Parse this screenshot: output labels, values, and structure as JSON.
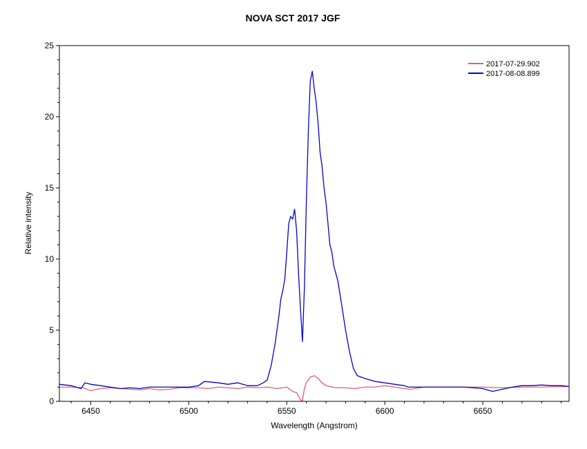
{
  "chart_data": {
    "type": "line",
    "title": "NOVA SCT 2017   JGF",
    "xlabel": "Wavelength (Angstrom)",
    "ylabel": "Relative intensity",
    "xlim": [
      6434,
      6694
    ],
    "ylim": [
      0,
      25
    ],
    "xticks": [
      6450,
      6500,
      6550,
      6600,
      6650
    ],
    "yticks": [
      0,
      5,
      10,
      15,
      20,
      25
    ],
    "grid": false,
    "legend_position": "top-right",
    "series": [
      {
        "name": "2017-07-29.902",
        "color": "#e85a6a",
        "x": [
          6434,
          6440,
          6446,
          6450,
          6455,
          6460,
          6465,
          6470,
          6475,
          6480,
          6485,
          6490,
          6495,
          6500,
          6505,
          6510,
          6515,
          6520,
          6525,
          6530,
          6535,
          6540,
          6545,
          6550,
          6553,
          6555,
          6557,
          6558,
          6559,
          6560,
          6562,
          6564,
          6566,
          6568,
          6570,
          6575,
          6580,
          6585,
          6590,
          6595,
          6600,
          6605,
          6610,
          6613,
          6620,
          6630,
          6640,
          6650,
          6660,
          6670,
          6680,
          6694
        ],
        "y": [
          1.0,
          1.0,
          0.95,
          0.75,
          0.9,
          0.95,
          0.9,
          0.85,
          0.8,
          0.9,
          0.8,
          0.85,
          0.95,
          0.95,
          0.95,
          0.9,
          1.0,
          0.95,
          0.9,
          1.0,
          0.95,
          1.0,
          0.9,
          1.0,
          0.7,
          0.6,
          0.1,
          0.05,
          0.9,
          1.3,
          1.7,
          1.8,
          1.6,
          1.3,
          1.1,
          0.95,
          0.95,
          0.9,
          1.0,
          1.0,
          1.1,
          1.0,
          0.9,
          0.85,
          1.0,
          1.0,
          1.0,
          1.0,
          0.95,
          1.0,
          1.0,
          1.05
        ]
      },
      {
        "name": "2017-08-08.899",
        "color": "#0000cc",
        "x": [
          6434,
          6440,
          6445,
          6447,
          6450,
          6455,
          6460,
          6465,
          6470,
          6475,
          6480,
          6490,
          6495,
          6500,
          6505,
          6508,
          6515,
          6520,
          6525,
          6530,
          6535,
          6538,
          6540,
          6542,
          6544,
          6546,
          6547,
          6548,
          6549,
          6550,
          6551,
          6552,
          6553,
          6554,
          6555,
          6556,
          6557,
          6558,
          6559,
          6560,
          6561,
          6562,
          6563,
          6564,
          6565,
          6566,
          6567,
          6568,
          6569,
          6570,
          6571,
          6572,
          6573,
          6574,
          6575,
          6576,
          6578,
          6580,
          6582,
          6584,
          6586,
          6590,
          6595,
          6600,
          6605,
          6610,
          6612,
          6620,
          6630,
          6640,
          6645,
          6650,
          6655,
          6660,
          6665,
          6670,
          6675,
          6680,
          6685,
          6690,
          6694
        ],
        "y": [
          1.2,
          1.1,
          0.9,
          1.3,
          1.2,
          1.1,
          1.0,
          0.9,
          0.95,
          0.9,
          1.0,
          1.0,
          1.0,
          1.0,
          1.1,
          1.4,
          1.3,
          1.2,
          1.3,
          1.1,
          1.1,
          1.3,
          1.5,
          2.5,
          4.0,
          6.0,
          7.2,
          7.8,
          8.6,
          10.5,
          12.5,
          13.0,
          12.8,
          13.5,
          12.0,
          9.0,
          6.5,
          4.2,
          8.0,
          14.0,
          19.0,
          22.5,
          23.2,
          22.0,
          21.0,
          19.5,
          17.5,
          16.5,
          15.0,
          14.0,
          12.5,
          11.0,
          10.5,
          9.5,
          9.0,
          8.5,
          6.8,
          5.0,
          3.5,
          2.3,
          1.8,
          1.6,
          1.4,
          1.3,
          1.2,
          1.1,
          1.0,
          1.0,
          1.0,
          1.0,
          0.95,
          0.9,
          0.7,
          0.85,
          1.0,
          1.1,
          1.1,
          1.15,
          1.1,
          1.1,
          1.05
        ]
      }
    ]
  }
}
